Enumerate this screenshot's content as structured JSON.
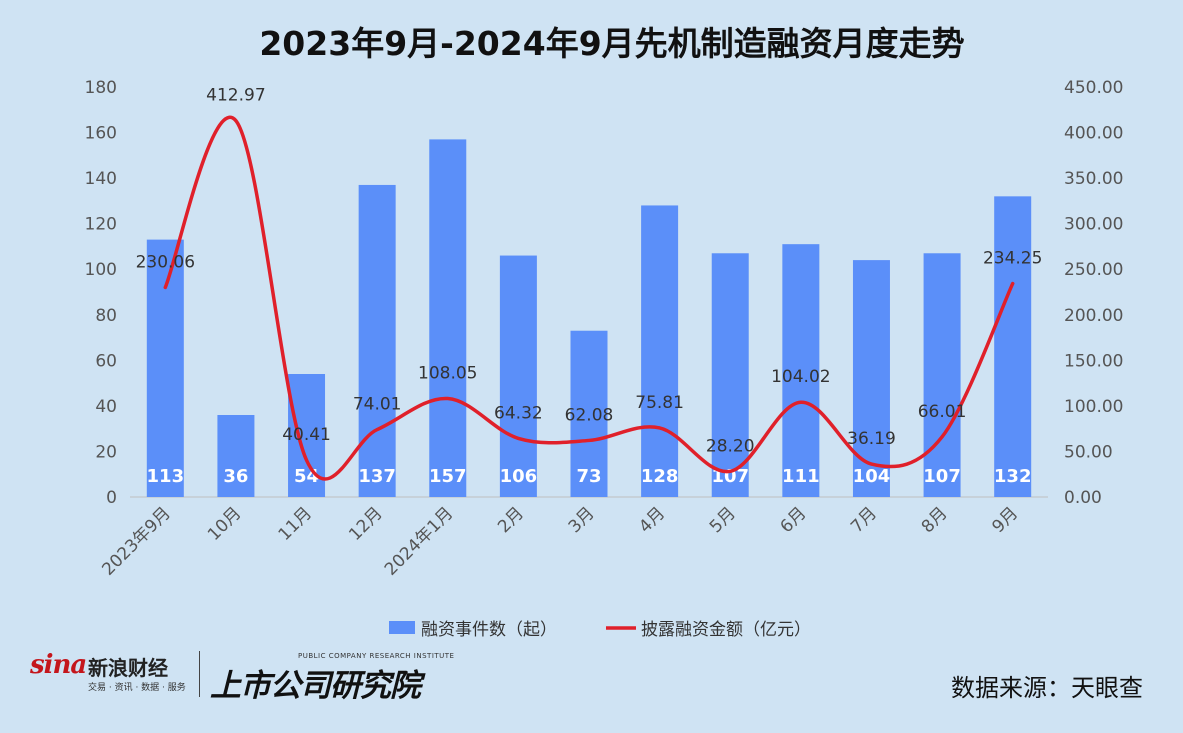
{
  "chart_data": {
    "type": "bar+line",
    "title": "2023年9月-2024年9月先机制造融资月度走势",
    "categories": [
      "2023年9月",
      "10月",
      "11月",
      "12月",
      "2024年1月",
      "2月",
      "3月",
      "4月",
      "5月",
      "6月",
      "7月",
      "8月",
      "9月"
    ],
    "series": [
      {
        "name": "融资事件数（起）",
        "type": "bar",
        "axis": "left",
        "color": "#5b8ff9",
        "values": [
          113,
          36,
          54,
          137,
          157,
          106,
          73,
          128,
          107,
          111,
          104,
          107,
          132
        ]
      },
      {
        "name": "披露融资金额（亿元）",
        "type": "line",
        "axis": "right",
        "color": "#e0202a",
        "values": [
          230.06,
          412.97,
          40.41,
          74.01,
          108.05,
          64.32,
          62.08,
          75.81,
          28.2,
          104.02,
          36.19,
          66.01,
          234.25
        ],
        "labels": [
          "230.06",
          "412.97",
          "40.41",
          "74.01",
          "108.05",
          "64.32",
          "62.08",
          "75.81",
          "28.20",
          "104.02",
          "36.19",
          "66.01",
          "234.25"
        ]
      }
    ],
    "y_left": {
      "min": 0,
      "max": 180,
      "step": 20,
      "ticks": [
        "0",
        "20",
        "40",
        "60",
        "80",
        "100",
        "120",
        "140",
        "160",
        "180"
      ]
    },
    "y_right": {
      "min": 0,
      "max": 450,
      "step": 50,
      "ticks": [
        "0.00",
        "50.00",
        "100.00",
        "150.00",
        "200.00",
        "250.00",
        "300.00",
        "350.00",
        "400.00",
        "450.00"
      ]
    },
    "legend_position": "bottom",
    "grid": false
  },
  "footer": {
    "source": "数据来源：天眼查",
    "sina_brand": "sina",
    "sina_name": "新浪财经",
    "sina_sub": "交易 · 资讯 · 数据 · 服务",
    "inst_en": "PUBLIC COMPANY RESEARCH INSTITUTE",
    "inst_cn": "上市公司研究院"
  }
}
